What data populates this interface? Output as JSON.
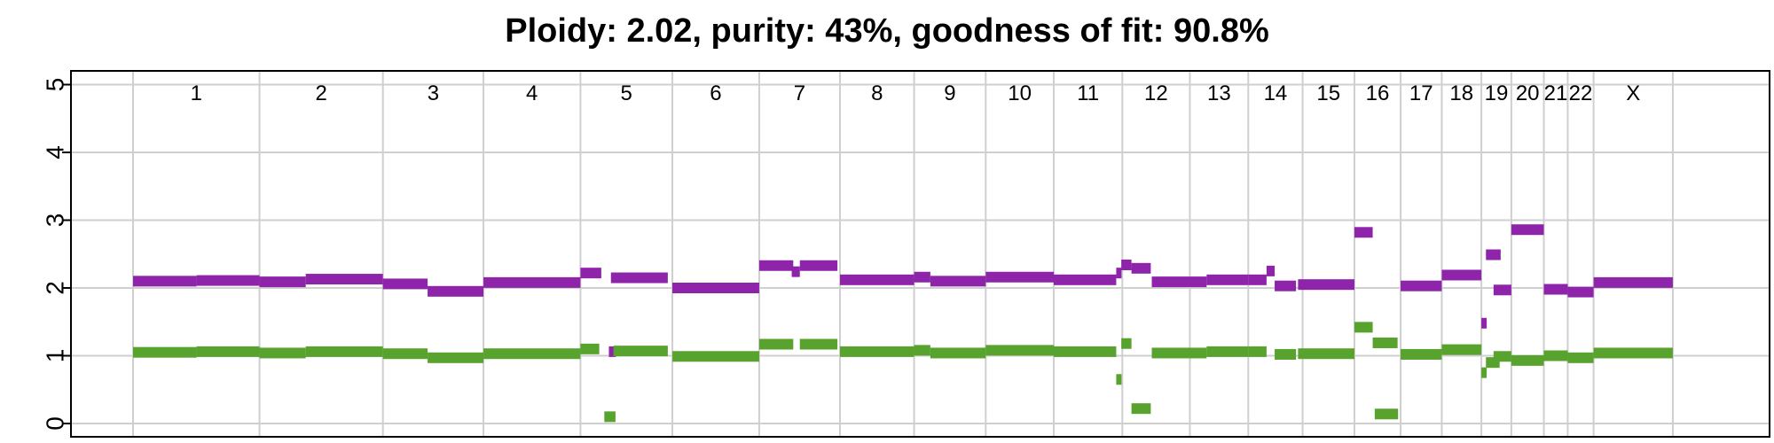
{
  "chart_data": {
    "type": "scatter",
    "title": "Ploidy: 2.02, purity: 43%, goodness of fit: 90.8%",
    "xlabel": "",
    "ylabel": "",
    "ylim": [
      0,
      5
    ],
    "yticks": [
      "0",
      "1",
      "2",
      "3",
      "4",
      "5"
    ],
    "grid": true,
    "xlim": [
      0,
      3088
    ],
    "chromosomes": [
      {
        "name": "1",
        "start": 0,
        "end": 249
      },
      {
        "name": "2",
        "start": 249,
        "end": 492
      },
      {
        "name": "3",
        "start": 492,
        "end": 690
      },
      {
        "name": "4",
        "start": 690,
        "end": 881
      },
      {
        "name": "5",
        "start": 881,
        "end": 1062
      },
      {
        "name": "6",
        "start": 1062,
        "end": 1233
      },
      {
        "name": "7",
        "start": 1233,
        "end": 1392
      },
      {
        "name": "8",
        "start": 1392,
        "end": 1538
      },
      {
        "name": "9",
        "start": 1538,
        "end": 1679
      },
      {
        "name": "10",
        "start": 1679,
        "end": 1813
      },
      {
        "name": "11",
        "start": 1813,
        "end": 1948
      },
      {
        "name": "12",
        "start": 1948,
        "end": 2081
      },
      {
        "name": "13",
        "start": 2081,
        "end": 2196
      },
      {
        "name": "14",
        "start": 2196,
        "end": 2303
      },
      {
        "name": "15",
        "start": 2303,
        "end": 2405
      },
      {
        "name": "16",
        "start": 2405,
        "end": 2496
      },
      {
        "name": "17",
        "start": 2496,
        "end": 2577
      },
      {
        "name": "18",
        "start": 2577,
        "end": 2655
      },
      {
        "name": "19",
        "start": 2655,
        "end": 2714
      },
      {
        "name": "20",
        "start": 2714,
        "end": 2778
      },
      {
        "name": "21",
        "start": 2778,
        "end": 2825
      },
      {
        "name": "22",
        "start": 2825,
        "end": 2876
      },
      {
        "name": "X",
        "start": 2876,
        "end": 3032
      }
    ],
    "series": [
      {
        "color": "#8e24aa",
        "segments": [
          {
            "x0": 0,
            "x1": 125,
            "y": 2.1
          },
          {
            "x0": 125,
            "x1": 249,
            "y": 2.11
          },
          {
            "x0": 249,
            "x1": 340,
            "y": 2.09
          },
          {
            "x0": 340,
            "x1": 492,
            "y": 2.13
          },
          {
            "x0": 492,
            "x1": 580,
            "y": 2.06
          },
          {
            "x0": 580,
            "x1": 690,
            "y": 1.95
          },
          {
            "x0": 690,
            "x1": 881,
            "y": 2.08
          },
          {
            "x0": 881,
            "x1": 922,
            "y": 2.22
          },
          {
            "x0": 937,
            "x1": 951,
            "y": 1.06
          },
          {
            "x0": 941,
            "x1": 1053,
            "y": 2.15
          },
          {
            "x0": 1062,
            "x1": 1233,
            "y": 2.0
          },
          {
            "x0": 1233,
            "x1": 1300,
            "y": 2.33
          },
          {
            "x0": 1297,
            "x1": 1313,
            "y": 2.24
          },
          {
            "x0": 1313,
            "x1": 1387,
            "y": 2.33
          },
          {
            "x0": 1392,
            "x1": 1538,
            "y": 2.12
          },
          {
            "x0": 1538,
            "x1": 1570,
            "y": 2.16
          },
          {
            "x0": 1570,
            "x1": 1679,
            "y": 2.1
          },
          {
            "x0": 1679,
            "x1": 1813,
            "y": 2.16
          },
          {
            "x0": 1813,
            "x1": 1936,
            "y": 2.12
          },
          {
            "x0": 1936,
            "x1": 1946,
            "y": 2.22
          },
          {
            "x0": 1946,
            "x1": 1966,
            "y": 2.34
          },
          {
            "x0": 1966,
            "x1": 2004,
            "y": 2.29
          },
          {
            "x0": 2006,
            "x1": 2114,
            "y": 2.09
          },
          {
            "x0": 2114,
            "x1": 2196,
            "y": 2.12
          },
          {
            "x0": 2196,
            "x1": 2232,
            "y": 2.12
          },
          {
            "x0": 2232,
            "x1": 2248,
            "y": 2.25
          },
          {
            "x0": 2248,
            "x1": 2290,
            "y": 2.03
          },
          {
            "x0": 2294,
            "x1": 2405,
            "y": 2.05
          },
          {
            "x0": 2405,
            "x1": 2441,
            "y": 2.82
          },
          {
            "x0": 2496,
            "x1": 2577,
            "y": 2.03
          },
          {
            "x0": 2577,
            "x1": 2655,
            "y": 2.19
          },
          {
            "x0": 2655,
            "x1": 2664,
            "y": 1.48
          },
          {
            "x0": 2664,
            "x1": 2693,
            "y": 2.49
          },
          {
            "x0": 2679,
            "x1": 2714,
            "y": 1.97
          },
          {
            "x0": 2714,
            "x1": 2778,
            "y": 2.86
          },
          {
            "x0": 2778,
            "x1": 2825,
            "y": 1.98
          },
          {
            "x0": 2825,
            "x1": 2876,
            "y": 1.94
          },
          {
            "x0": 2876,
            "x1": 3032,
            "y": 2.08
          }
        ]
      },
      {
        "color": "#58a22e",
        "segments": [
          {
            "x0": 0,
            "x1": 125,
            "y": 1.05
          },
          {
            "x0": 125,
            "x1": 249,
            "y": 1.06
          },
          {
            "x0": 249,
            "x1": 340,
            "y": 1.04
          },
          {
            "x0": 340,
            "x1": 492,
            "y": 1.06
          },
          {
            "x0": 492,
            "x1": 580,
            "y": 1.03
          },
          {
            "x0": 580,
            "x1": 690,
            "y": 0.97
          },
          {
            "x0": 690,
            "x1": 881,
            "y": 1.03
          },
          {
            "x0": 881,
            "x1": 918,
            "y": 1.1
          },
          {
            "x0": 928,
            "x1": 950,
            "y": 0.1
          },
          {
            "x0": 946,
            "x1": 1053,
            "y": 1.07
          },
          {
            "x0": 1062,
            "x1": 1233,
            "y": 0.99
          },
          {
            "x0": 1233,
            "x1": 1300,
            "y": 1.17
          },
          {
            "x0": 1313,
            "x1": 1387,
            "y": 1.17
          },
          {
            "x0": 1392,
            "x1": 1538,
            "y": 1.06
          },
          {
            "x0": 1538,
            "x1": 1570,
            "y": 1.08
          },
          {
            "x0": 1570,
            "x1": 1679,
            "y": 1.04
          },
          {
            "x0": 1679,
            "x1": 1813,
            "y": 1.08
          },
          {
            "x0": 1813,
            "x1": 1936,
            "y": 1.06
          },
          {
            "x0": 1936,
            "x1": 1946,
            "y": 0.65
          },
          {
            "x0": 1946,
            "x1": 1966,
            "y": 1.18
          },
          {
            "x0": 1966,
            "x1": 2004,
            "y": 0.22
          },
          {
            "x0": 2006,
            "x1": 2114,
            "y": 1.04
          },
          {
            "x0": 2114,
            "x1": 2196,
            "y": 1.06
          },
          {
            "x0": 2196,
            "x1": 2232,
            "y": 1.06
          },
          {
            "x0": 2248,
            "x1": 2290,
            "y": 1.02
          },
          {
            "x0": 2294,
            "x1": 2405,
            "y": 1.03
          },
          {
            "x0": 2405,
            "x1": 2441,
            "y": 1.42
          },
          {
            "x0": 2441,
            "x1": 2490,
            "y": 1.19
          },
          {
            "x0": 2445,
            "x1": 2491,
            "y": 0.14
          },
          {
            "x0": 2496,
            "x1": 2577,
            "y": 1.02
          },
          {
            "x0": 2577,
            "x1": 2655,
            "y": 1.09
          },
          {
            "x0": 2655,
            "x1": 2664,
            "y": 0.75
          },
          {
            "x0": 2664,
            "x1": 2691,
            "y": 0.9
          },
          {
            "x0": 2679,
            "x1": 2714,
            "y": 0.99
          },
          {
            "x0": 2714,
            "x1": 2778,
            "y": 0.93
          },
          {
            "x0": 2778,
            "x1": 2825,
            "y": 1.0
          },
          {
            "x0": 2825,
            "x1": 2876,
            "y": 0.97
          },
          {
            "x0": 2876,
            "x1": 3032,
            "y": 1.04
          }
        ]
      }
    ]
  }
}
